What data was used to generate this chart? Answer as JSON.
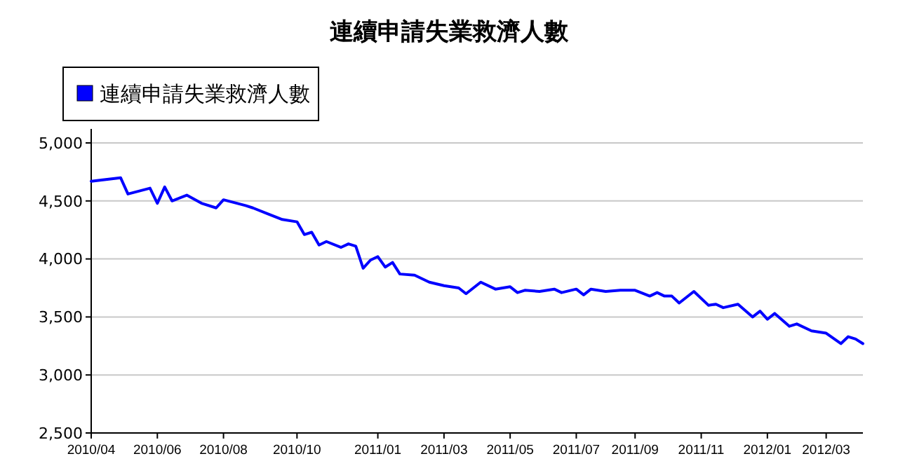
{
  "chart_data": {
    "type": "line",
    "title": "連續申請失業救濟人數",
    "x": [
      "2010-04-03",
      "2010-05-01",
      "2010-05-08",
      "2010-05-29",
      "2010-06-05",
      "2010-06-12",
      "2010-06-19",
      "2010-07-03",
      "2010-07-17",
      "2010-07-31",
      "2010-08-07",
      "2010-08-28",
      "2010-09-04",
      "2010-09-18",
      "2010-10-02",
      "2010-10-16",
      "2010-10-23",
      "2010-10-30",
      "2010-11-06",
      "2010-11-13",
      "2010-11-27",
      "2010-12-04",
      "2010-12-11",
      "2010-12-18",
      "2010-12-25",
      "2011-01-01",
      "2011-01-08",
      "2011-01-15",
      "2011-01-22",
      "2011-02-05",
      "2011-02-19",
      "2011-03-05",
      "2011-03-19",
      "2011-03-26",
      "2011-04-09",
      "2011-04-23",
      "2011-05-07",
      "2011-05-14",
      "2011-05-21",
      "2011-06-04",
      "2011-06-18",
      "2011-06-25",
      "2011-07-09",
      "2011-07-16",
      "2011-07-23",
      "2011-08-06",
      "2011-08-20",
      "2011-09-03",
      "2011-09-17",
      "2011-09-24",
      "2011-10-01",
      "2011-10-08",
      "2011-10-15",
      "2011-10-29",
      "2011-11-12",
      "2011-11-19",
      "2011-11-26",
      "2011-12-10",
      "2011-12-24",
      "2011-12-31",
      "2012-01-07",
      "2012-01-14",
      "2012-01-28",
      "2012-02-04",
      "2012-02-18",
      "2012-03-03",
      "2012-03-17",
      "2012-03-24",
      "2012-03-31",
      "2012-04-07"
    ],
    "series": [
      {
        "name": "連續申請失業救濟人數",
        "color": "#0000ff",
        "values": [
          4670,
          4700,
          4560,
          4610,
          4480,
          4620,
          4500,
          4550,
          4480,
          4440,
          4510,
          4460,
          4440,
          4390,
          4340,
          4320,
          4210,
          4230,
          4120,
          4150,
          4100,
          4130,
          4110,
          3920,
          3990,
          4020,
          3930,
          3970,
          3870,
          3860,
          3800,
          3770,
          3750,
          3700,
          3800,
          3740,
          3760,
          3710,
          3730,
          3720,
          3740,
          3710,
          3740,
          3690,
          3740,
          3720,
          3730,
          3730,
          3680,
          3710,
          3680,
          3680,
          3620,
          3720,
          3600,
          3610,
          3580,
          3610,
          3500,
          3550,
          3480,
          3530,
          3420,
          3440,
          3380,
          3360,
          3270,
          3330,
          3310,
          3270
        ]
      }
    ],
    "xlim": [
      "2010-04-03",
      "2012-04-07"
    ],
    "xticks": [
      {
        "value": "2010-04-03",
        "label": "2010/04"
      },
      {
        "value": "2010-06-05",
        "label": "2010/06"
      },
      {
        "value": "2010-08-07",
        "label": "2010/08"
      },
      {
        "value": "2010-10-16",
        "label": "2010/10"
      },
      {
        "value": "2011-01-01",
        "label": "2011/01"
      },
      {
        "value": "2011-03-05",
        "label": "2011/03"
      },
      {
        "value": "2011-05-07",
        "label": "2011/05"
      },
      {
        "value": "2011-07-09",
        "label": "2011/07"
      },
      {
        "value": "2011-09-03",
        "label": "2011/09"
      },
      {
        "value": "2011-11-05",
        "label": "2011/11"
      },
      {
        "value": "2012-01-07",
        "label": "2012/01"
      },
      {
        "value": "2012-03-03",
        "label": "2012/03"
      }
    ],
    "ylim": [
      2500,
      5000
    ],
    "yticks": [
      {
        "value": 2500,
        "label": "2,500"
      },
      {
        "value": 3000,
        "label": "3,000"
      },
      {
        "value": 3500,
        "label": "3,500"
      },
      {
        "value": 4000,
        "label": "4,000"
      },
      {
        "value": 4500,
        "label": "4,500"
      },
      {
        "value": 5000,
        "label": "5,000"
      }
    ],
    "grid": "y",
    "legend": "top left",
    "marker": "none",
    "line_style": "solid"
  }
}
